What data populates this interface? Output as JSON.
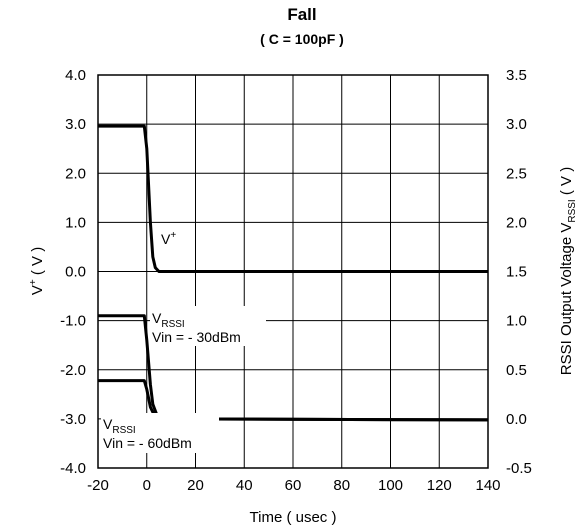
{
  "chart_data": {
    "type": "line",
    "title": "Fall",
    "subtitle": "( C = 100pF )",
    "xlabel": "Time ( usec )",
    "ylabel_left_main": "V",
    "ylabel_left_sup": "+",
    "ylabel_left_rest": " ( V )",
    "ylabel_right_main": "RSSI Output Voltage V",
    "ylabel_right_sub": "RSSI",
    "ylabel_right_rest": " ( V )",
    "xlim": [
      -20,
      140
    ],
    "ylim_left": [
      -4.0,
      4.0
    ],
    "ylim_right": [
      -0.5,
      3.5
    ],
    "x_ticks": [
      "-20",
      "0",
      "20",
      "40",
      "60",
      "80",
      "100",
      "120",
      "140"
    ],
    "y_left_ticks": [
      "4.0",
      "3.0",
      "2.0",
      "1.0",
      "0.0",
      "-1.0",
      "-2.0",
      "-3.0",
      "-4.0"
    ],
    "y_right_ticks": [
      "3.5",
      "3.0",
      "2.5",
      "2.0",
      "1.5",
      "1.0",
      "0.5",
      "0.0",
      "-0.5"
    ],
    "grid": true,
    "series": [
      {
        "axis": "left",
        "points": [
          [
            -20,
            2.96
          ],
          [
            -1,
            2.96
          ],
          [
            0,
            2.5
          ],
          [
            1.5,
            1.0
          ],
          [
            2.5,
            0.3
          ],
          [
            3.5,
            0.08
          ],
          [
            5,
            0.0
          ],
          [
            140,
            0.0
          ]
        ]
      },
      {
        "axis": "right",
        "points": [
          [
            -20,
            1.05
          ],
          [
            -1,
            1.05
          ],
          [
            0,
            0.8
          ],
          [
            1.5,
            0.35
          ],
          [
            2.5,
            0.15
          ],
          [
            4,
            0.05
          ],
          [
            6,
            0.02
          ],
          [
            8,
            0.0
          ],
          [
            140,
            -0.01
          ]
        ]
      },
      {
        "axis": "right",
        "points": [
          [
            -20,
            0.39
          ],
          [
            -1,
            0.39
          ],
          [
            0,
            0.3
          ],
          [
            1.5,
            0.12
          ],
          [
            3,
            0.04
          ],
          [
            5,
            0.01
          ],
          [
            8,
            0.0
          ],
          [
            140,
            -0.01
          ]
        ]
      }
    ],
    "annotations": {
      "vplus_main": "V",
      "vplus_sup": "+",
      "vrssi1_main": "V",
      "vrssi1_sub": "RSSI",
      "vrssi1_vin": "Vin = - 30dBm",
      "vrssi2_main": "V",
      "vrssi2_sub": "RSSI",
      "vrssi2_vin": "Vin = - 60dBm"
    }
  }
}
